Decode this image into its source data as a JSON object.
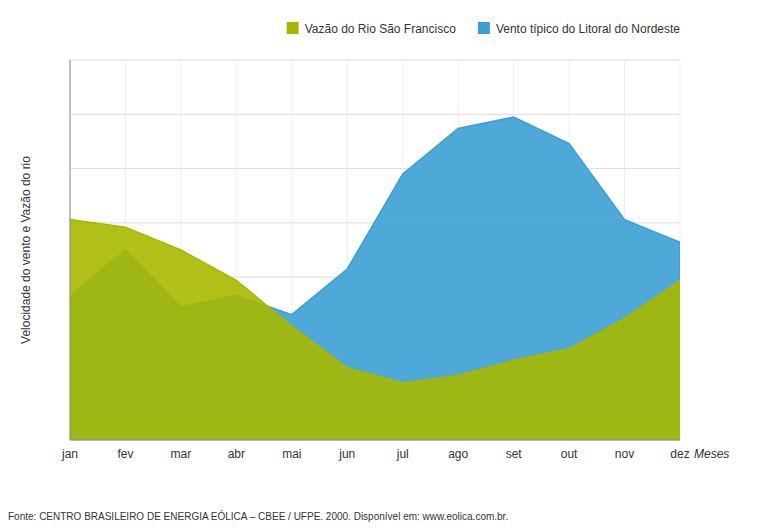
{
  "chart_data": {
    "type": "area",
    "categories": [
      "jan",
      "fev",
      "mar",
      "abr",
      "mai",
      "jun",
      "jul",
      "ago",
      "set",
      "out",
      "nov",
      "dez"
    ],
    "series": [
      {
        "name": "Vazão do Rio São Francisco",
        "color": "#a8b800",
        "values": [
          58,
          56,
          50,
          42,
          30,
          19,
          15,
          17,
          21,
          24,
          32,
          42
        ]
      },
      {
        "name": "Vento típico do Litoral do Nordeste",
        "color": "#3b9ed4",
        "values": [
          38,
          50,
          35,
          38,
          33,
          45,
          70,
          82,
          85,
          78,
          58,
          52
        ]
      }
    ],
    "xlabel": "Meses",
    "ylabel": "Velocidade do vento e Vazão do rio",
    "annotations": [
      "Fonte: CENTRO BRASILEIRO DE ENERGIA EÓLICA – CBEE / UFPE. 2000. Disponível em: www.eolica.com.br."
    ],
    "ylim": [
      0,
      100
    ],
    "yticks": [
      0,
      14.285714285714286,
      28.571428571428573,
      42.857142857142854,
      57.142857142857146,
      71.42857142857143,
      85.71428571428571,
      100
    ],
    "grid": true,
    "tick_labels": "x",
    "legend": "upper right"
  }
}
